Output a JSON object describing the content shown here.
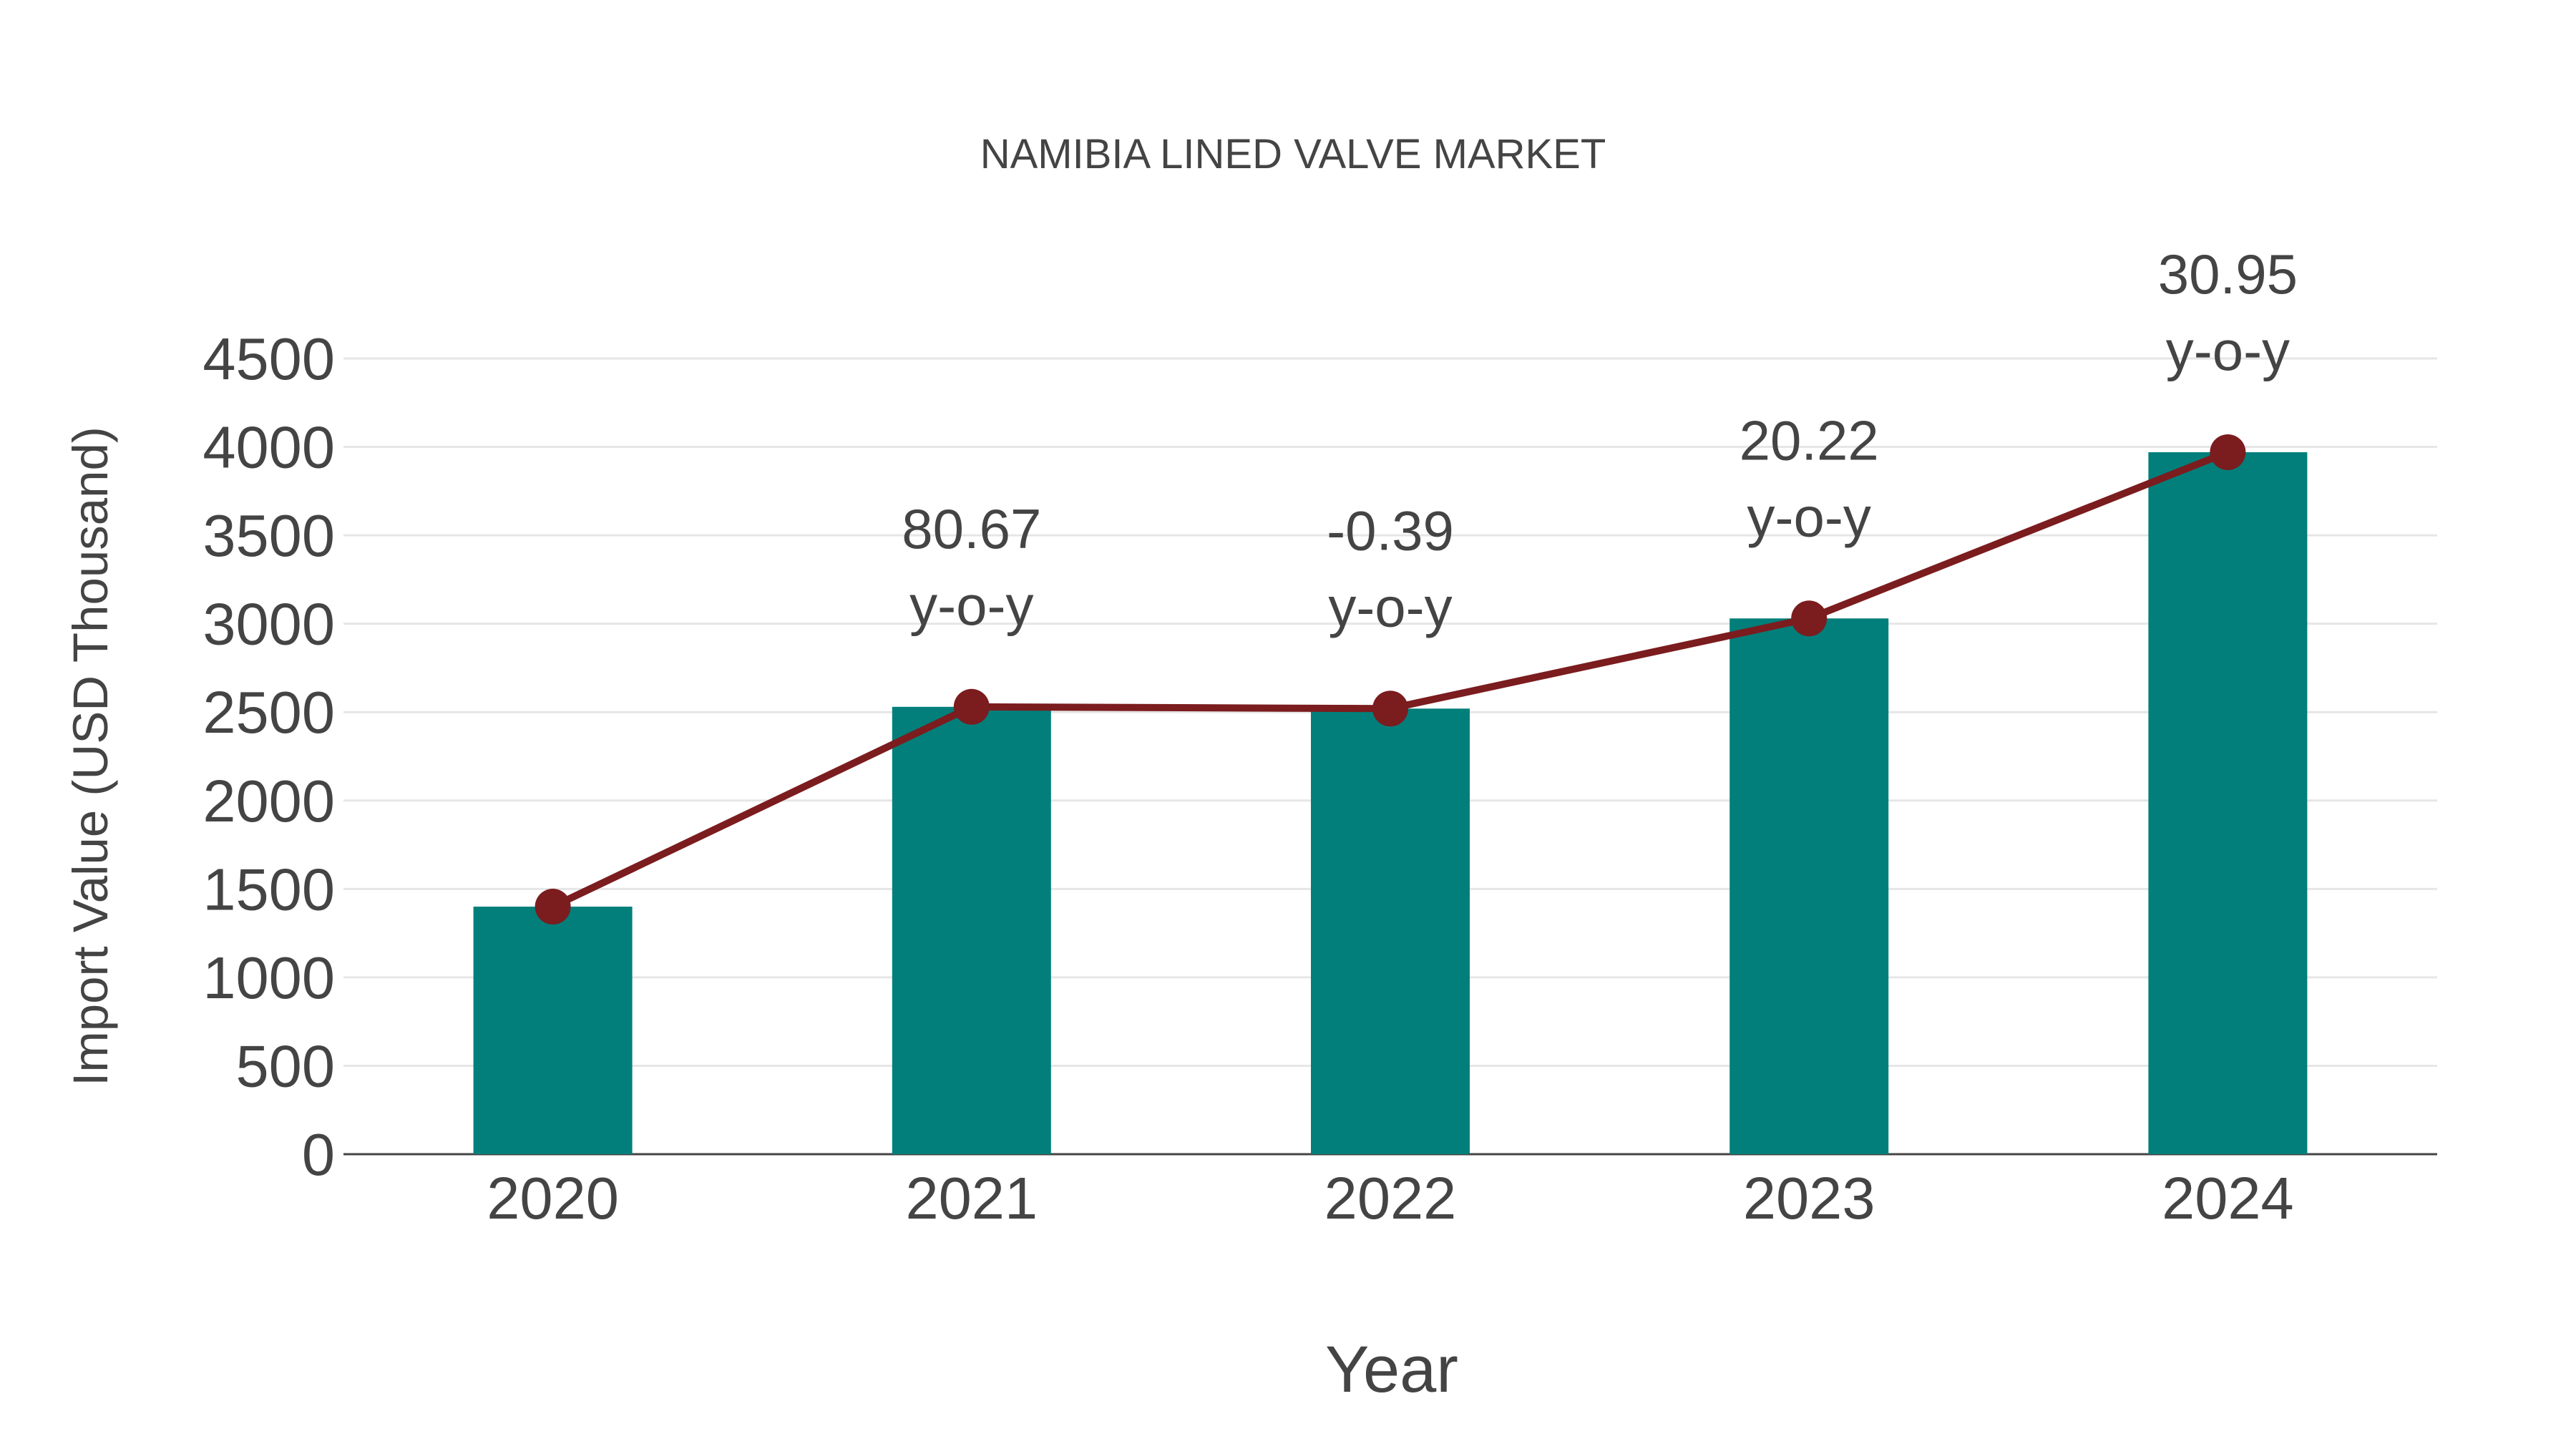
{
  "chart_data": {
    "type": "bar",
    "title": "NAMIBIA LINED VALVE MARKET",
    "xlabel": "Year",
    "ylabel": "Import Value (USD Thousand)",
    "categories": [
      "2020",
      "2021",
      "2022",
      "2023",
      "2024"
    ],
    "values": [
      1400,
      2530,
      2520,
      3030,
      3970
    ],
    "line_values": [
      1400,
      2530,
      2520,
      3030,
      3970
    ],
    "yoy_labels": [
      "",
      "80.67",
      "-0.39",
      "20.22",
      "30.95"
    ],
    "yoy_suffix": "y-o-y",
    "ylim": [
      0,
      4500
    ],
    "yticks": [
      0,
      500,
      1000,
      1500,
      2000,
      2500,
      3000,
      3500,
      4000,
      4500
    ],
    "grid": true,
    "colors": {
      "bar": "#027f7b",
      "line": "#7b1c1e",
      "text": "#444444",
      "grid": "#e6e6e6"
    }
  }
}
